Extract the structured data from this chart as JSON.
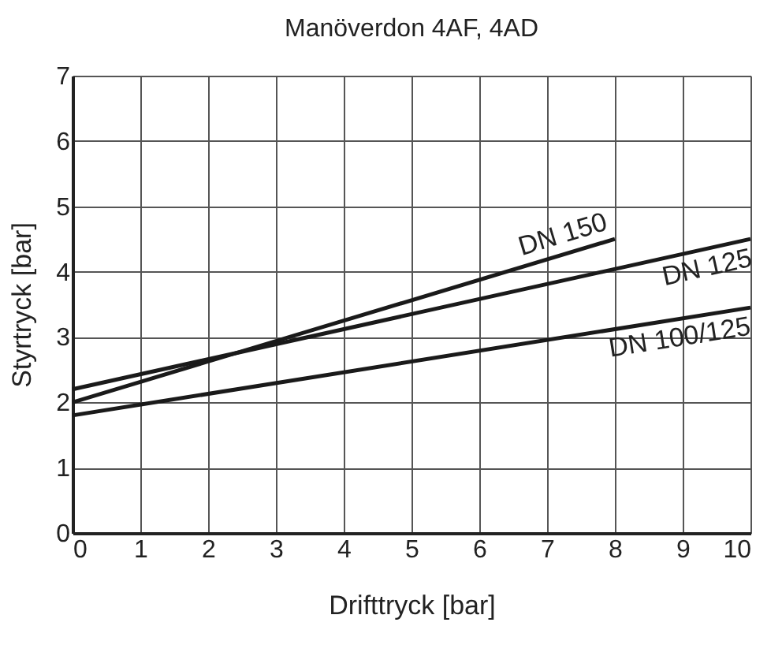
{
  "chart_data": {
    "type": "line",
    "title": "Manöverdon 4AF, 4AD",
    "xlabel": "Drifttryck [bar]",
    "ylabel": "Styrtryck [bar]",
    "series": [
      {
        "name": "DN 150",
        "color": "#1a1a1a",
        "x": [
          0,
          8
        ],
        "values": [
          2.0,
          4.5
        ]
      },
      {
        "name": "DN 125",
        "color": "#1a1a1a",
        "x": [
          0,
          10
        ],
        "values": [
          2.2,
          4.5
        ]
      },
      {
        "name": "DN 100/125",
        "color": "#1a1a1a",
        "x": [
          0,
          10
        ],
        "values": [
          1.8,
          3.45
        ]
      }
    ],
    "xlim": [
      0,
      10
    ],
    "ylim": [
      0,
      7
    ],
    "xticks": [
      0,
      1,
      2,
      3,
      4,
      5,
      6,
      7,
      8,
      9,
      10
    ],
    "yticks": [
      0,
      1,
      2,
      3,
      4,
      5,
      6,
      7
    ],
    "grid": true,
    "marker": "none",
    "line_style": "solid"
  }
}
